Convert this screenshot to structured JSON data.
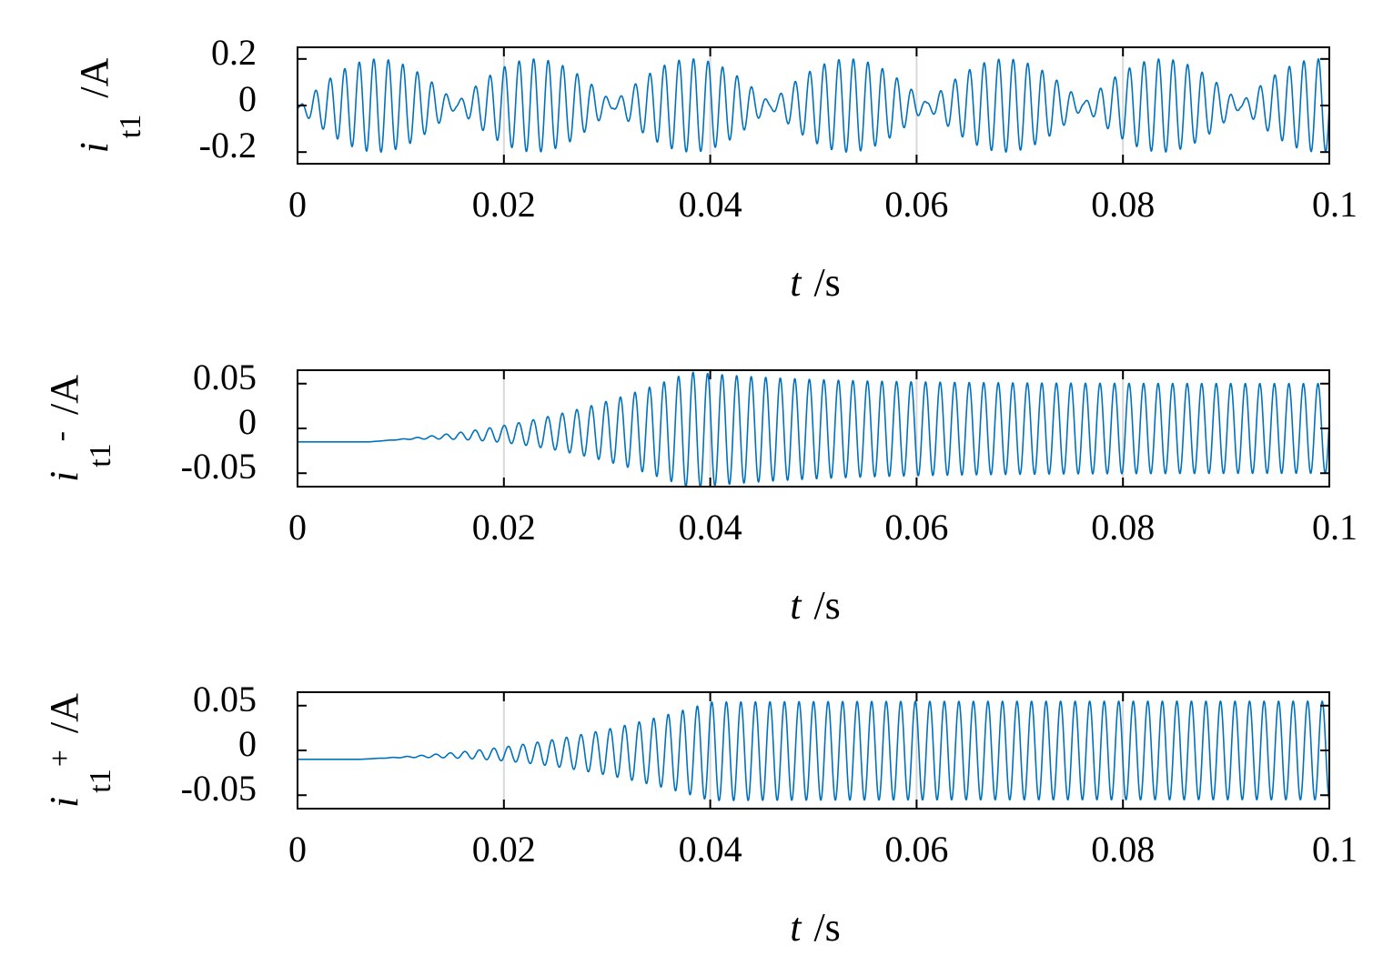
{
  "chart_data": [
    {
      "type": "line",
      "xlabel": {
        "symbol": "t",
        "unit": "/s"
      },
      "ylabel": {
        "symbol": "i",
        "subscript": "t1",
        "superscript": "",
        "unit": "/A"
      },
      "xlim": [
        0,
        0.1
      ],
      "ylim": [
        -0.25,
        0.25
      ],
      "xticks": [
        "0",
        "0.02",
        "0.04",
        "0.06",
        "0.08",
        "0.1"
      ],
      "yticks": [
        {
          "value": 0.2,
          "label": "0.2"
        },
        {
          "value": 0,
          "label": "0"
        },
        {
          "value": -0.2,
          "label": "-0.2"
        }
      ],
      "grid": true,
      "series": [
        {
          "color": "#0072BD",
          "shape": "beating",
          "carrier_cycles": 71,
          "envelope_peak": 0.2,
          "envelope_period": 0.0152,
          "first_envelope_peak": 0.0078,
          "offset": -0.04
        }
      ]
    },
    {
      "type": "line",
      "xlabel": {
        "symbol": "t",
        "unit": "/s"
      },
      "ylabel": {
        "symbol": "i",
        "subscript": "t1",
        "superscript": "-",
        "unit": "/A"
      },
      "xlim": [
        0,
        0.1
      ],
      "ylim": [
        -0.065,
        0.065
      ],
      "xticks": [
        "0",
        "0.02",
        "0.04",
        "0.06",
        "0.08",
        "0.1"
      ],
      "yticks": [
        {
          "value": 0.05,
          "label": "0.05"
        },
        {
          "value": 0,
          "label": "0"
        },
        {
          "value": -0.05,
          "label": "-0.05"
        }
      ],
      "grid": true,
      "series": [
        {
          "color": "#0072BD",
          "shape": "growth",
          "carrier_cycles": 71,
          "onset": 0.007,
          "peak_time": 0.038,
          "peak_amplitude": 0.065,
          "steady_amplitude": 0.05,
          "offset": -0.015
        }
      ]
    },
    {
      "type": "line",
      "xlabel": {
        "symbol": "t",
        "unit": "/s"
      },
      "ylabel": {
        "symbol": "i",
        "subscript": "t1",
        "superscript": "+",
        "unit": "/A"
      },
      "xlim": [
        0,
        0.1
      ],
      "ylim": [
        -0.065,
        0.065
      ],
      "xticks": [
        "0",
        "0.02",
        "0.04",
        "0.06",
        "0.08",
        "0.1"
      ],
      "yticks": [
        {
          "value": 0.05,
          "label": "0.05"
        },
        {
          "value": 0,
          "label": "0"
        },
        {
          "value": -0.05,
          "label": "-0.05"
        }
      ],
      "grid": true,
      "series": [
        {
          "color": "#0072BD",
          "shape": "growth",
          "carrier_cycles": 71,
          "onset": 0.006,
          "peak_time": 0.04,
          "peak_amplitude": 0.055,
          "steady_amplitude": 0.055,
          "offset": -0.01
        }
      ]
    }
  ]
}
